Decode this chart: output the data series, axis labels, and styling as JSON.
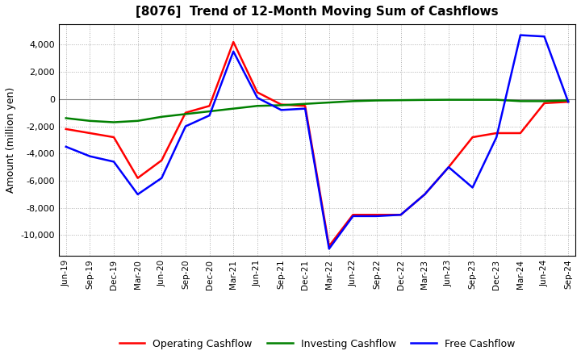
{
  "title": "[8076]  Trend of 12-Month Moving Sum of Cashflows",
  "ylabel": "Amount (million yen)",
  "ylim": [
    -11500,
    5500
  ],
  "yticks": [
    -10000,
    -8000,
    -6000,
    -4000,
    -2000,
    0,
    2000,
    4000
  ],
  "x_labels": [
    "Jun-19",
    "Sep-19",
    "Dec-19",
    "Mar-20",
    "Jun-20",
    "Sep-20",
    "Dec-20",
    "Mar-21",
    "Jun-21",
    "Sep-21",
    "Dec-21",
    "Mar-22",
    "Jun-22",
    "Sep-22",
    "Dec-22",
    "Mar-23",
    "Jun-23",
    "Sep-23",
    "Dec-23",
    "Mar-24",
    "Jun-24",
    "Sep-24"
  ],
  "operating_cashflow": [
    -2200,
    -2500,
    -2800,
    -5800,
    -4500,
    -1000,
    -500,
    4200,
    500,
    -400,
    -500,
    -10800,
    -8500,
    -8500,
    -8500,
    -7000,
    -5000,
    -2800,
    -2500,
    -2500,
    -300,
    -200
  ],
  "investing_cashflow": [
    -1400,
    -1600,
    -1700,
    -1600,
    -1300,
    -1100,
    -900,
    -700,
    -500,
    -450,
    -350,
    -250,
    -150,
    -100,
    -80,
    -60,
    -50,
    -50,
    -50,
    -150,
    -150,
    -100
  ],
  "free_cashflow": [
    -3500,
    -4200,
    -4600,
    -7000,
    -5800,
    -2000,
    -1200,
    3500,
    100,
    -800,
    -700,
    -11000,
    -8600,
    -8600,
    -8500,
    -7000,
    -5000,
    -6500,
    -2800,
    4700,
    4600,
    -200
  ],
  "colors": {
    "operating": "#ff0000",
    "investing": "#008000",
    "free": "#0000ff"
  },
  "legend_labels": [
    "Operating Cashflow",
    "Investing Cashflow",
    "Free Cashflow"
  ],
  "background_color": "#ffffff",
  "grid_color": "#999999",
  "linewidth": 1.8
}
